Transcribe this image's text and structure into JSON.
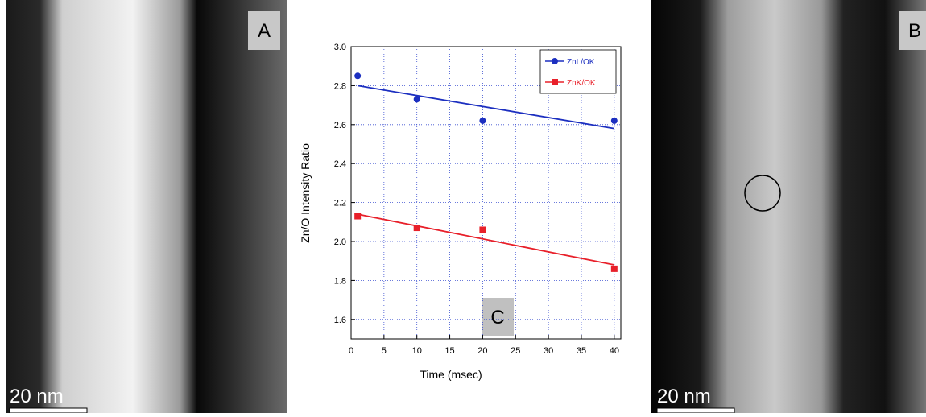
{
  "panels": {
    "left": {
      "label": "A",
      "scale": "20 nm"
    },
    "right": {
      "label": "B",
      "scale": "20 nm"
    },
    "chart_label": "C"
  },
  "chart_data": {
    "type": "scatter",
    "x_label": "Time (msec)",
    "y_label": "Zn/O Intensity Ratio",
    "xlim": [
      0,
      41
    ],
    "ylim": [
      1.5,
      3.0
    ],
    "xticks": [
      0,
      5,
      10,
      15,
      20,
      25,
      30,
      35,
      40
    ],
    "yticks": [
      1.6,
      1.8,
      {
        "value": 2,
        "label": "2.0"
      },
      2.2,
      2.4,
      2.6,
      2.8,
      {
        "value": 3,
        "label": "3.0"
      }
    ],
    "grid": true,
    "legend": "top-right",
    "series": [
      {
        "name": "ZnL/OK",
        "color": "#1c2fc0",
        "marker": "circle",
        "x": [
          1,
          10,
          20,
          40
        ],
        "values": [
          2.85,
          2.73,
          2.62,
          2.62
        ],
        "fit": {
          "x": [
            1,
            40
          ],
          "values": [
            2.8,
            2.58
          ]
        }
      },
      {
        "name": "ZnK/OK",
        "color": "#e8202a",
        "marker": "square",
        "x": [
          1,
          10,
          20,
          40
        ],
        "values": [
          2.13,
          2.07,
          2.06,
          1.86
        ],
        "fit": {
          "x": [
            1,
            40
          ],
          "values": [
            2.14,
            1.88
          ]
        }
      }
    ]
  }
}
